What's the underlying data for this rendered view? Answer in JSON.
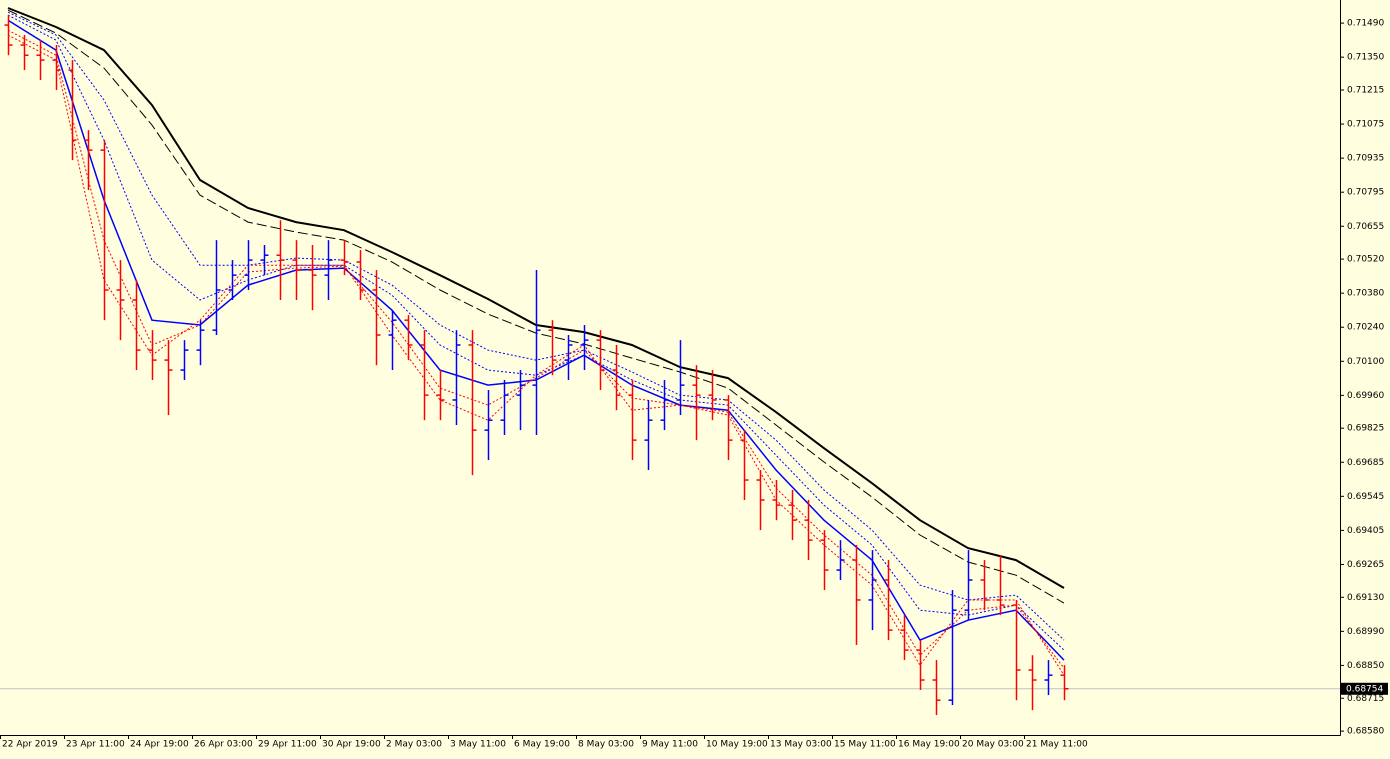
{
  "chart_data": {
    "type": "ohlc",
    "up_color": "#0000ff",
    "down_color": "#ff0000",
    "xlim": [
      -0.5,
      83.25
    ],
    "ylim": [
      0.68564,
      0.71585
    ],
    "xticks": [
      {
        "value": -0.5,
        "label": "22 Apr 2019"
      },
      {
        "value": 3.5,
        "label": "23 Apr 11:00"
      },
      {
        "value": 7.5,
        "label": "24 Apr 19:00"
      },
      {
        "value": 11.5,
        "label": "26 Apr 03:00"
      },
      {
        "value": 15.5,
        "label": "29 Apr 11:00"
      },
      {
        "value": 19.5,
        "label": "30 Apr 19:00"
      },
      {
        "value": 23.5,
        "label": "2 May 03:00"
      },
      {
        "value": 27.5,
        "label": "3 May 11:00"
      },
      {
        "value": 31.5,
        "label": "6 May 19:00"
      },
      {
        "value": 35.5,
        "label": "8 May 03:00"
      },
      {
        "value": 39.5,
        "label": "9 May 11:00"
      },
      {
        "value": 43.5,
        "label": "10 May 19:00"
      },
      {
        "value": 47.5,
        "label": "13 May 03:00"
      },
      {
        "value": 51.5,
        "label": "15 May 11:00"
      },
      {
        "value": 55.5,
        "label": "16 May 19:00"
      },
      {
        "value": 59.5,
        "label": "20 May 03:00"
      },
      {
        "value": 63.5,
        "label": "21 May 11:00"
      }
    ],
    "yticks": [
      {
        "value": 0.7149,
        "label": "0.71490"
      },
      {
        "value": 0.7135,
        "label": "0.71350"
      },
      0.71215,
      0.71075,
      0.70935,
      0.70795,
      0.70655,
      {
        "value": 0.7052,
        "label": "0.70520"
      },
      {
        "value": 0.7038,
        "label": "0.70380"
      },
      {
        "value": 0.7024,
        "label": "0.70240"
      },
      {
        "value": 0.701,
        "label": "0.70100"
      },
      {
        "value": 0.6996,
        "label": "0.69960"
      },
      0.69825,
      0.69685,
      0.69545,
      0.69405,
      0.69265,
      {
        "value": 0.6913,
        "label": "0.69130"
      },
      {
        "value": 0.6899,
        "label": "0.68990"
      },
      {
        "value": 0.6885,
        "label": "0.68850"
      },
      0.68715,
      {
        "value": 0.6858,
        "label": "0.68580"
      }
    ],
    "current_price": 0.68754,
    "open": [
      0.71482,
      0.714,
      0.71358,
      0.71338,
      0.71297,
      0.71009,
      0.70968,
      0.70393,
      0.70352,
      0.70146,
      0.70105,
      0.70064,
      0.70146,
      0.70228,
      0.70393,
      0.70454,
      0.70516,
      0.70536,
      0.70516,
      0.70475,
      0.70454,
      0.70516,
      0.70508,
      0.70393,
      0.70208,
      0.70269,
      0.70167,
      0.69961,
      0.69941,
      0.70167,
      0.69817,
      0.69858,
      0.69961,
      0.70002,
      0.70228,
      0.70105,
      0.70167,
      0.70187,
      0.70064,
      0.69961,
      0.69776,
      0.69858,
      0.69941,
      0.70002,
      0.69961,
      0.69941,
      0.69776,
      0.69612,
      0.6953,
      0.69509,
      0.69447,
      0.69365,
      0.69242,
      0.69283,
      0.69119,
      0.69201,
      0.68995,
      0.68913,
      0.6879,
      0.68707,
      0.69077,
      0.69201,
      0.69119,
      0.69098,
      0.68831,
      0.6879,
      0.6881
    ],
    "high": [
      0.71523,
      0.71441,
      0.7142,
      0.714,
      0.71338,
      0.7105,
      0.71009,
      0.70516,
      0.70434,
      0.70228,
      0.70187,
      0.70187,
      0.70269,
      0.70598,
      0.70516,
      0.70598,
      0.70578,
      0.7068,
      0.70598,
      0.70578,
      0.70598,
      0.70598,
      0.70557,
      0.70475,
      0.7031,
      0.7029,
      0.70228,
      0.70064,
      0.70228,
      0.70228,
      0.69982,
      0.70023,
      0.70064,
      0.70475,
      0.70269,
      0.70208,
      0.70249,
      0.70228,
      0.70167,
      0.70023,
      0.69941,
      0.70023,
      0.70187,
      0.70084,
      0.70064,
      0.69961,
      0.69817,
      0.69653,
      0.69612,
      0.69571,
      0.6953,
      0.69406,
      0.69365,
      0.69345,
      0.69324,
      0.69283,
      0.69057,
      0.68954,
      0.68872,
      0.6916,
      0.69324,
      0.69283,
      0.69303,
      0.69119,
      0.68892,
      0.68872,
      0.68851
    ],
    "low": [
      0.71358,
      0.71297,
      0.71256,
      0.71215,
      0.70927,
      0.70804,
      0.70269,
      0.70187,
      0.70064,
      0.70023,
      0.69879,
      0.70023,
      0.70084,
      0.70208,
      0.70352,
      0.70393,
      0.70454,
      0.70352,
      0.70352,
      0.7031,
      0.70352,
      0.70454,
      0.70352,
      0.70084,
      0.70064,
      0.70105,
      0.69858,
      0.69858,
      0.69838,
      0.69632,
      0.69694,
      0.69797,
      0.69817,
      0.69797,
      0.70043,
      0.70023,
      0.70064,
      0.69982,
      0.69899,
      0.69694,
      0.69653,
      0.69817,
      0.69879,
      0.69776,
      0.69858,
      0.69694,
      0.6953,
      0.69406,
      0.69447,
      0.69365,
      0.69283,
      0.6916,
      0.69201,
      0.68934,
      0.68995,
      0.68954,
      0.68872,
      0.68749,
      0.68646,
      0.68687,
      0.69036,
      0.69077,
      0.69057,
      0.68707,
      0.68666,
      0.68728,
      0.68707
    ],
    "close": [
      0.714,
      0.71358,
      0.71338,
      0.71297,
      0.71009,
      0.70968,
      0.70393,
      0.70352,
      0.70146,
      0.70105,
      0.70064,
      0.70146,
      0.70228,
      0.70393,
      0.70454,
      0.70516,
      0.70536,
      0.70516,
      0.70475,
      0.70454,
      0.70516,
      0.70508,
      0.70393,
      0.70208,
      0.70269,
      0.70167,
      0.69961,
      0.69941,
      0.70167,
      0.69817,
      0.69858,
      0.69961,
      0.70002,
      0.70228,
      0.70105,
      0.70167,
      0.70187,
      0.70064,
      0.69961,
      0.69776,
      0.69858,
      0.69941,
      0.70002,
      0.69961,
      0.69941,
      0.69776,
      0.69612,
      0.6953,
      0.69509,
      0.69447,
      0.69365,
      0.69242,
      0.69283,
      0.69119,
      0.69201,
      0.68995,
      0.68913,
      0.6879,
      0.68707,
      0.69077,
      0.69201,
      0.69119,
      0.69098,
      0.68831,
      0.6879,
      0.6881,
      0.68754
    ],
    "line_x": [
      0,
      3,
      6,
      9,
      12,
      15,
      18,
      21,
      24,
      27,
      30,
      33,
      36,
      39,
      42,
      45,
      48,
      51,
      54,
      57,
      60,
      63,
      66
    ],
    "indicators": [
      {
        "color": "#000000",
        "style": "solid",
        "width": 2,
        "values": [
          0.71552,
          0.71474,
          0.71379,
          0.71153,
          0.70845,
          0.7073,
          0.70672,
          0.70639,
          0.70549,
          0.70454,
          0.70356,
          0.70249,
          0.7022,
          0.70167,
          0.70076,
          0.70031,
          0.69891,
          0.69743,
          0.69599,
          0.69447,
          0.69332,
          0.69283,
          0.69168
        ]
      },
      {
        "color": "#000000",
        "style": "dashed",
        "width": 1,
        "values": [
          0.71543,
          0.71449,
          0.71305,
          0.71071,
          0.70783,
          0.70672,
          0.70631,
          0.70598,
          0.70508,
          0.70393,
          0.70294,
          0.70216,
          0.70171,
          0.70113,
          0.70056,
          0.6999,
          0.69838,
          0.69686,
          0.69542,
          0.69386,
          0.69275,
          0.69221,
          0.69106
        ]
      },
      {
        "color": "#0000ff",
        "style": "dotted",
        "width": 1,
        "values": [
          0.71535,
          0.71441,
          0.71174,
          0.70783,
          0.70495,
          0.70495,
          0.70524,
          0.70516,
          0.70413,
          0.70249,
          0.70146,
          0.70105,
          0.70146,
          0.70056,
          0.69961,
          0.69941,
          0.69776,
          0.69571,
          0.69406,
          0.6918,
          0.69119,
          0.69139,
          0.68954
        ]
      },
      {
        "color": "#0000ff",
        "style": "dotted",
        "width": 1,
        "values": [
          0.71523,
          0.7142,
          0.71009,
          0.70516,
          0.70352,
          0.70434,
          0.70495,
          0.70495,
          0.70372,
          0.70167,
          0.70064,
          0.70043,
          0.70125,
          0.70023,
          0.69941,
          0.6992,
          0.69714,
          0.69509,
          0.69345,
          0.69077,
          0.69057,
          0.69098,
          0.68913
        ]
      },
      {
        "color": "#0000ff",
        "style": "solid",
        "width": 1.5,
        "values": [
          0.71502,
          0.71379,
          0.70763,
          0.70269,
          0.70249,
          0.70413,
          0.70475,
          0.70483,
          0.7031,
          0.70064,
          0.70002,
          0.70023,
          0.70125,
          0.70002,
          0.6992,
          0.69899,
          0.69653,
          0.69447,
          0.69283,
          0.68954,
          0.69036,
          0.69077,
          0.68872
        ]
      },
      {
        "color": "#ff0000",
        "style": "dotted",
        "width": 1,
        "values": [
          0.71461,
          0.71358,
          0.70598,
          0.70167,
          0.70249,
          0.70467,
          0.70483,
          0.70491,
          0.70261,
          0.6999,
          0.6992,
          0.70031,
          0.70146,
          0.69949,
          0.6992,
          0.69891,
          0.69579,
          0.69386,
          0.69221,
          0.68892,
          0.69077,
          0.69098,
          0.68839
        ]
      },
      {
        "color": "#ff0000",
        "style": "dotted",
        "width": 1,
        "values": [
          0.71441,
          0.71338,
          0.70434,
          0.70125,
          0.70269,
          0.70495,
          0.70495,
          0.70495,
          0.70208,
          0.69941,
          0.69858,
          0.70043,
          0.70167,
          0.69899,
          0.6992,
          0.69879,
          0.6953,
          0.69345,
          0.6918,
          0.68851,
          0.69119,
          0.69119,
          0.6881
        ]
      }
    ]
  }
}
